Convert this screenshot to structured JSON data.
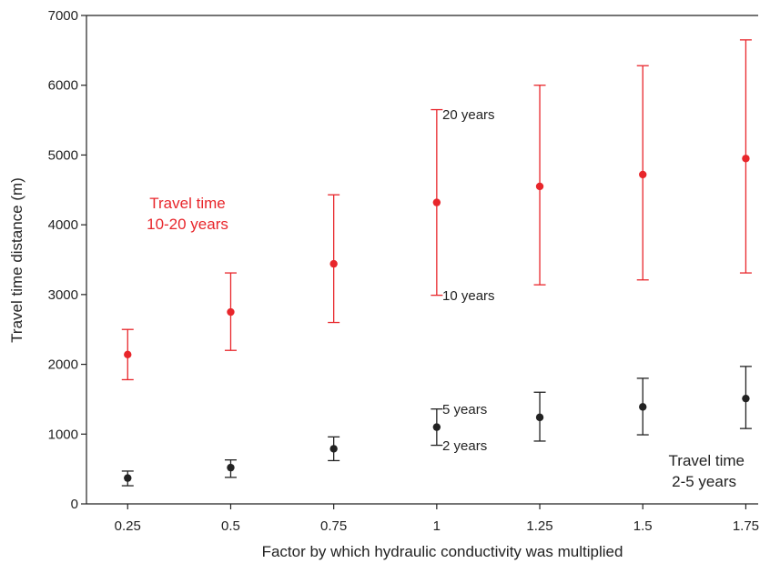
{
  "chart_data": {
    "type": "scatter",
    "xlabel": "Factor by which hydraulic conductivity was multiplied",
    "ylabel": "Travel time distance (m)",
    "xlim": [
      0.15,
      1.78
    ],
    "ylim": [
      0,
      7000
    ],
    "x_ticks": [
      "0.25",
      "0.5",
      "0.75",
      "1",
      "1.25",
      "1.5",
      "1.75"
    ],
    "y_ticks": [
      "0",
      "1000",
      "2000",
      "3000",
      "4000",
      "5000",
      "6000",
      "7000"
    ],
    "grid": false,
    "series": [
      {
        "name": "Travel time 10-20 years",
        "color": "#e8262b",
        "points": [
          {
            "x": 0.25,
            "y": 2140,
            "low": 1780,
            "high": 2500
          },
          {
            "x": 0.5,
            "y": 2750,
            "low": 2200,
            "high": 3310
          },
          {
            "x": 0.75,
            "y": 3440,
            "low": 2600,
            "high": 4430
          },
          {
            "x": 1.0,
            "y": 4320,
            "low": 2990,
            "high": 5650
          },
          {
            "x": 1.25,
            "y": 4550,
            "low": 3140,
            "high": 6000
          },
          {
            "x": 1.5,
            "y": 4720,
            "low": 3210,
            "high": 6280
          },
          {
            "x": 1.75,
            "y": 4950,
            "low": 3310,
            "high": 6650
          }
        ]
      },
      {
        "name": "Travel time 2-5 years",
        "color": "#222222",
        "points": [
          {
            "x": 0.25,
            "y": 370,
            "low": 260,
            "high": 470
          },
          {
            "x": 0.5,
            "y": 520,
            "low": 380,
            "high": 630
          },
          {
            "x": 0.75,
            "y": 790,
            "low": 620,
            "high": 960
          },
          {
            "x": 1.0,
            "y": 1100,
            "low": 840,
            "high": 1360
          },
          {
            "x": 1.25,
            "y": 1240,
            "low": 900,
            "high": 1600
          },
          {
            "x": 1.5,
            "y": 1390,
            "low": 990,
            "high": 1800
          },
          {
            "x": 1.75,
            "y": 1510,
            "low": 1080,
            "high": 1970
          }
        ]
      }
    ],
    "annotations": [
      {
        "text": "20 years",
        "x": 1.04,
        "y": 5630
      },
      {
        "text": "10 years",
        "x": 1.04,
        "y": 3000
      },
      {
        "text": "5 years",
        "x": 1.04,
        "y": 1350
      },
      {
        "text": "2 years",
        "x": 1.04,
        "y": 830
      }
    ],
    "series_labels": {
      "red_line1": "Travel time",
      "red_line2": "10-20 years",
      "black_line1": "Travel time",
      "black_line2": "2-5 years"
    }
  }
}
